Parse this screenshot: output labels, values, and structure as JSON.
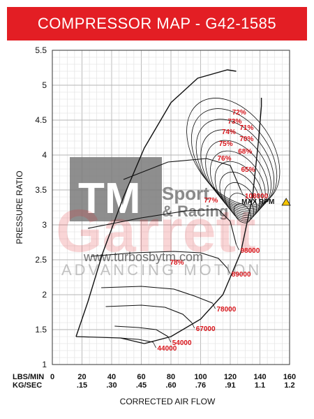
{
  "chart_data": {
    "type": "line",
    "title": "COMPRESSOR MAP  -  G42-1585",
    "xlabel": "CORRECTED AIR FLOW",
    "ylabel": "PRESSURE RATIO",
    "x_unit_labels": [
      "LBS/MIN",
      "KG/SEC"
    ],
    "xlim": [
      0,
      160
    ],
    "ylim": [
      1,
      5.5
    ],
    "x_ticks": [
      "0",
      "20",
      "40",
      "60",
      "80",
      "100",
      "120",
      "140",
      "160"
    ],
    "x_ticks_secondary": [
      "",
      ".15",
      ".30",
      ".45",
      ".60",
      ".76",
      ".91",
      "1.1",
      "1.2"
    ],
    "y_ticks": [
      "1",
      "1.5",
      "2",
      "2.5",
      "3",
      "3.5",
      "4",
      "4.5",
      "5",
      "5.5"
    ],
    "speed_lines": [
      {
        "name": "44000",
        "points": [
          [
            46,
            1.38
          ],
          [
            58,
            1.36
          ],
          [
            68,
            1.32
          ]
        ]
      },
      {
        "name": "54000",
        "points": [
          [
            42,
            1.55
          ],
          [
            58,
            1.53
          ],
          [
            70,
            1.5
          ],
          [
            78,
            1.4
          ]
        ]
      },
      {
        "name": "67000",
        "points": [
          [
            36,
            1.83
          ],
          [
            60,
            1.85
          ],
          [
            76,
            1.82
          ],
          [
            88,
            1.72
          ],
          [
            94,
            1.6
          ]
        ]
      },
      {
        "name": "78000",
        "points": [
          [
            33,
            2.1
          ],
          [
            60,
            2.12
          ],
          [
            82,
            2.08
          ],
          [
            96,
            1.98
          ],
          [
            108,
            1.88
          ]
        ]
      },
      {
        "name": "89000",
        "points": [
          [
            26,
            2.55
          ],
          [
            55,
            2.6
          ],
          [
            82,
            2.62
          ],
          [
            100,
            2.6
          ],
          [
            112,
            2.52
          ],
          [
            118,
            2.38
          ]
        ]
      },
      {
        "name": "98000",
        "points": [
          [
            24,
            2.95
          ],
          [
            60,
            3.1
          ],
          [
            90,
            3.2
          ],
          [
            112,
            3.22
          ],
          [
            120,
            3.05
          ],
          [
            124,
            2.72
          ]
        ]
      },
      {
        "name": "108000",
        "points": [
          [
            48,
            3.65
          ],
          [
            78,
            3.9
          ],
          [
            104,
            3.95
          ],
          [
            120,
            3.85
          ],
          [
            127,
            3.5
          ]
        ]
      }
    ],
    "surge_line": [
      [
        16,
        1.4
      ],
      [
        24,
        1.9
      ],
      [
        34,
        2.6
      ],
      [
        48,
        3.4
      ],
      [
        62,
        4.1
      ],
      [
        80,
        4.75
      ],
      [
        98,
        5.1
      ],
      [
        118,
        5.22
      ],
      [
        124,
        5.2
      ]
    ],
    "choke_line": [
      [
        62,
        1.3
      ],
      [
        80,
        1.4
      ],
      [
        100,
        1.65
      ],
      [
        115,
        2.0
      ],
      [
        127,
        2.6
      ],
      [
        135,
        3.4
      ],
      [
        139,
        4.2
      ],
      [
        141,
        4.7
      ],
      [
        141,
        4.82
      ]
    ],
    "efficiency_islands": [
      {
        "label": "65%",
        "x": 132,
        "y": 3.76
      },
      {
        "label": "68%",
        "x": 130,
        "y": 4.02
      },
      {
        "label": "70%",
        "x": 131,
        "y": 4.2
      },
      {
        "label": "71%",
        "x": 131,
        "y": 4.36
      },
      {
        "label": "72%",
        "x": 126,
        "y": 4.58
      },
      {
        "label": "73%",
        "x": 123,
        "y": 4.45
      },
      {
        "label": "74%",
        "x": 119,
        "y": 4.3
      },
      {
        "label": "75%",
        "x": 117,
        "y": 4.13
      },
      {
        "label": "76%",
        "x": 116,
        "y": 3.92
      },
      {
        "label": "77%",
        "x": 107,
        "y": 3.32
      },
      {
        "label": "78%",
        "x": 84,
        "y": 2.43
      }
    ],
    "max_rpm_label": "MAX RPM",
    "grid": true
  },
  "watermark": {
    "logo_letters": "TM",
    "brand_line_1": "Sport",
    "brand_line_2": "& Racing",
    "big_word": "Garrett",
    "sub_word": "ADVANCING MOTION",
    "url": "www.turbosbytm.com"
  }
}
